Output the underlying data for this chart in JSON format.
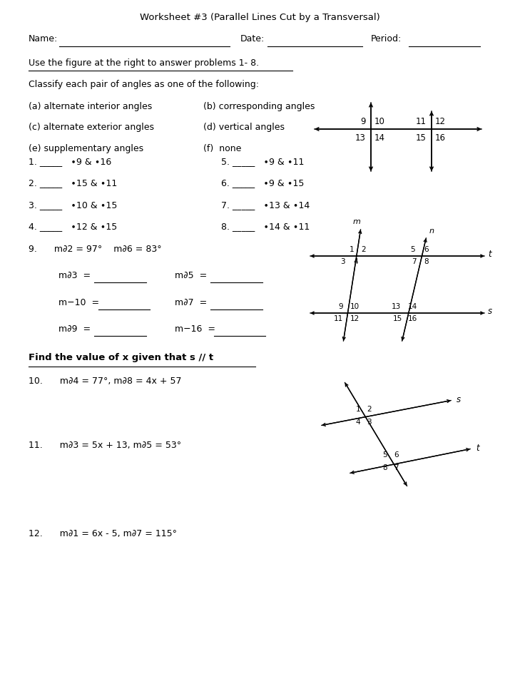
{
  "title": "Worksheet #3 (Parallel Lines Cut by a Transversal)",
  "bg_color": "#ffffff",
  "choices_col1": [
    "(a) alternate interior angles",
    "(c) alternate exterior angles",
    "(e) supplementary angles"
  ],
  "choices_col2": [
    "(b) corresponding angles",
    "(d) vertical angles",
    "(f)  none"
  ],
  "probs_left": [
    "1. _____   ∙9 & ∙16",
    "2. _____   ∙15 & ∙11",
    "3. _____   ∙10 & ∙15",
    "4. _____   ∙12 & ∙15"
  ],
  "probs_right": [
    "5. _____   ∙9 & ∙11",
    "6. _____   ∙9 & ∙15",
    "7. _____   ∙13 & ∙14",
    "8. _____   ∙14 & ∙11"
  ]
}
